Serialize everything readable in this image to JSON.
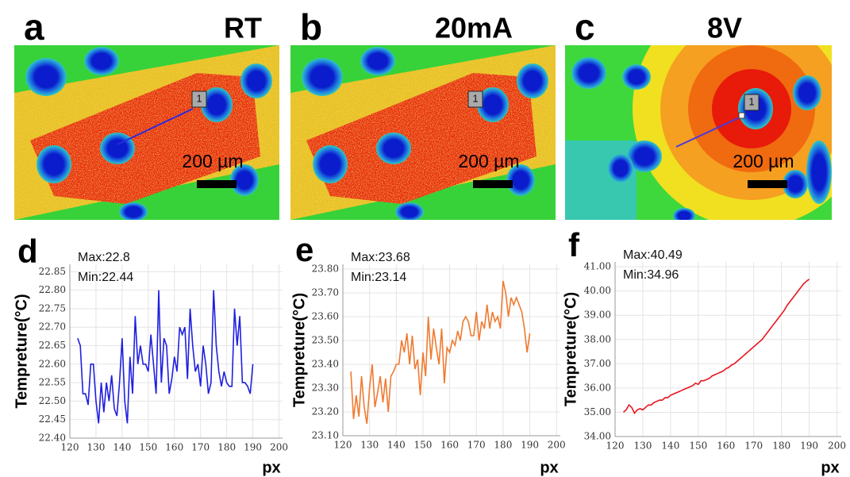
{
  "images": [
    {
      "panel_label": "a",
      "title": "RT",
      "scale_bar": "200 µm",
      "marker": "1"
    },
    {
      "panel_label": "b",
      "title": "20mA",
      "scale_bar": "200 µm",
      "marker": "1"
    },
    {
      "panel_label": "c",
      "title": "8V",
      "scale_bar": "200 µm",
      "marker": "1"
    }
  ],
  "chart_data": [
    {
      "type": "line",
      "panel_label": "d",
      "y_label": "Tempreture(°C)",
      "x_label": "px",
      "annotations": [
        "Max:22.8",
        "Min:22.44"
      ],
      "color": "#1f1fe0",
      "grid": true,
      "xlim": [
        120,
        205
      ],
      "xticks": [
        120,
        130,
        140,
        150,
        160,
        170,
        180,
        190,
        200
      ],
      "ylim": [
        22.4,
        22.87
      ],
      "yticks": [
        {
          "value": 22.4,
          "label": "22.40"
        },
        {
          "value": 22.45,
          "label": "22.45"
        },
        {
          "value": 22.5,
          "label": "22.50"
        },
        {
          "value": 22.55,
          "label": "22.55"
        },
        {
          "value": 22.6,
          "label": "22.60"
        },
        {
          "value": 22.65,
          "label": "22.65"
        },
        {
          "value": 22.7,
          "label": "22.70"
        },
        {
          "value": 22.75,
          "label": "22.75"
        },
        {
          "value": 22.8,
          "label": "22.80"
        },
        {
          "value": 22.85,
          "label": "22.85"
        }
      ],
      "x": [
        123,
        124,
        125,
        126,
        127,
        128,
        129,
        130,
        131,
        132,
        133,
        134,
        135,
        136,
        137,
        138,
        139,
        140,
        141,
        142,
        143,
        144,
        145,
        146,
        147,
        148,
        149,
        150,
        151,
        152,
        153,
        154,
        155,
        156,
        157,
        158,
        159,
        160,
        161,
        162,
        163,
        164,
        165,
        166,
        167,
        168,
        169,
        170,
        171,
        172,
        173,
        174,
        175,
        176,
        177,
        178,
        179,
        180,
        181,
        182,
        183,
        184,
        185,
        186,
        187,
        188,
        189,
        190
      ],
      "values": [
        22.67,
        22.65,
        22.52,
        22.52,
        22.49,
        22.6,
        22.6,
        22.5,
        22.44,
        22.55,
        22.47,
        22.55,
        22.5,
        22.57,
        22.48,
        22.46,
        22.55,
        22.67,
        22.5,
        22.44,
        22.62,
        22.52,
        22.73,
        22.6,
        22.65,
        22.6,
        22.6,
        22.58,
        22.68,
        22.6,
        22.52,
        22.8,
        22.55,
        22.67,
        22.65,
        22.52,
        22.56,
        22.62,
        22.58,
        22.7,
        22.68,
        22.7,
        22.56,
        22.75,
        22.65,
        22.58,
        22.6,
        22.54,
        22.65,
        22.6,
        22.52,
        22.55,
        22.8,
        22.65,
        22.58,
        22.54,
        22.58,
        22.55,
        22.54,
        22.54,
        22.75,
        22.65,
        22.73,
        22.55,
        22.55,
        22.54,
        22.52,
        22.6
      ]
    },
    {
      "type": "line",
      "panel_label": "e",
      "y_label": "Tempreture(°C)",
      "x_label": "px",
      "annotations": [
        "Max:23.68",
        "Min:23.14"
      ],
      "color": "#f07a30",
      "grid": true,
      "xlim": [
        120,
        205
      ],
      "xticks": [
        120,
        130,
        140,
        150,
        160,
        170,
        180,
        190,
        200
      ],
      "ylim": [
        23.1,
        23.82
      ],
      "yticks": [
        {
          "value": 23.1,
          "label": "23.10"
        },
        {
          "value": 23.2,
          "label": "23.20"
        },
        {
          "value": 23.3,
          "label": "23.30"
        },
        {
          "value": 23.4,
          "label": "23.40"
        },
        {
          "value": 23.5,
          "label": "23.50"
        },
        {
          "value": 23.6,
          "label": "23.60"
        },
        {
          "value": 23.7,
          "label": "23.70"
        },
        {
          "value": 23.8,
          "label": "23.80"
        }
      ],
      "x": [
        123,
        124,
        125,
        126,
        127,
        128,
        129,
        130,
        131,
        132,
        133,
        134,
        135,
        136,
        137,
        138,
        139,
        140,
        141,
        142,
        143,
        144,
        145,
        146,
        147,
        148,
        149,
        150,
        151,
        152,
        153,
        154,
        155,
        156,
        157,
        158,
        159,
        160,
        161,
        162,
        163,
        164,
        165,
        166,
        167,
        168,
        169,
        170,
        171,
        172,
        173,
        174,
        175,
        176,
        177,
        178,
        179,
        180,
        181,
        182,
        183,
        184,
        185,
        186,
        187,
        188,
        189,
        190
      ],
      "values": [
        23.37,
        23.17,
        23.27,
        23.18,
        23.35,
        23.22,
        23.15,
        23.3,
        23.4,
        23.22,
        23.28,
        23.35,
        23.24,
        23.34,
        23.2,
        23.35,
        23.37,
        23.4,
        23.4,
        23.5,
        23.45,
        23.53,
        23.4,
        23.52,
        23.38,
        23.42,
        23.27,
        23.45,
        23.35,
        23.6,
        23.42,
        23.55,
        23.47,
        23.4,
        23.55,
        23.32,
        23.47,
        23.45,
        23.5,
        23.48,
        23.54,
        23.5,
        23.58,
        23.6,
        23.58,
        23.52,
        23.52,
        23.62,
        23.5,
        23.58,
        23.55,
        23.65,
        23.55,
        23.62,
        23.58,
        23.6,
        23.55,
        23.75,
        23.7,
        23.6,
        23.68,
        23.65,
        23.68,
        23.65,
        23.62,
        23.55,
        23.45,
        23.53
      ]
    },
    {
      "type": "line",
      "panel_label": "f",
      "y_label": "Tempreture(°C)",
      "x_label": "px",
      "annotations": [
        "Max:40.49",
        "Min:34.96"
      ],
      "color": "#e8141e",
      "grid": true,
      "xlim": [
        120,
        205
      ],
      "xticks": [
        120,
        130,
        140,
        150,
        160,
        170,
        180,
        190,
        200
      ],
      "ylim": [
        34,
        41.2
      ],
      "yticks": [
        {
          "value": 34,
          "label": "34.00"
        },
        {
          "value": 35,
          "label": "35.00"
        },
        {
          "value": 36,
          "label": "36.00"
        },
        {
          "value": 37,
          "label": "37.00"
        },
        {
          "value": 38,
          "label": "38.00"
        },
        {
          "value": 39,
          "label": "39.00"
        },
        {
          "value": 40,
          "label": "40.00"
        },
        {
          "value": 41,
          "label": "41.00"
        }
      ],
      "x": [
        123,
        124,
        125,
        126,
        127,
        128,
        129,
        130,
        131,
        132,
        133,
        134,
        135,
        136,
        137,
        138,
        139,
        140,
        141,
        142,
        143,
        144,
        145,
        146,
        147,
        148,
        149,
        150,
        151,
        152,
        153,
        154,
        155,
        156,
        157,
        158,
        159,
        160,
        161,
        162,
        163,
        164,
        165,
        166,
        167,
        168,
        169,
        170,
        171,
        172,
        173,
        174,
        175,
        176,
        177,
        178,
        179,
        180,
        181,
        182,
        183,
        184,
        185,
        186,
        187,
        188,
        189,
        190
      ],
      "values": [
        35,
        35.1,
        35.3,
        35.2,
        34.96,
        35.1,
        35.15,
        35.1,
        35.2,
        35.3,
        35.3,
        35.4,
        35.45,
        35.5,
        35.5,
        35.6,
        35.6,
        35.7,
        35.75,
        35.8,
        35.85,
        35.9,
        35.95,
        36,
        36.05,
        36.1,
        36.2,
        36.15,
        36.3,
        36.3,
        36.35,
        36.4,
        36.5,
        36.55,
        36.6,
        36.65,
        36.7,
        36.8,
        36.85,
        36.95,
        37,
        37.1,
        37.2,
        37.3,
        37.4,
        37.5,
        37.6,
        37.7,
        37.8,
        37.9,
        38,
        38.15,
        38.3,
        38.45,
        38.6,
        38.75,
        38.9,
        39.05,
        39.2,
        39.4,
        39.55,
        39.7,
        39.85,
        40,
        40.15,
        40.3,
        40.4,
        40.49
      ]
    }
  ]
}
